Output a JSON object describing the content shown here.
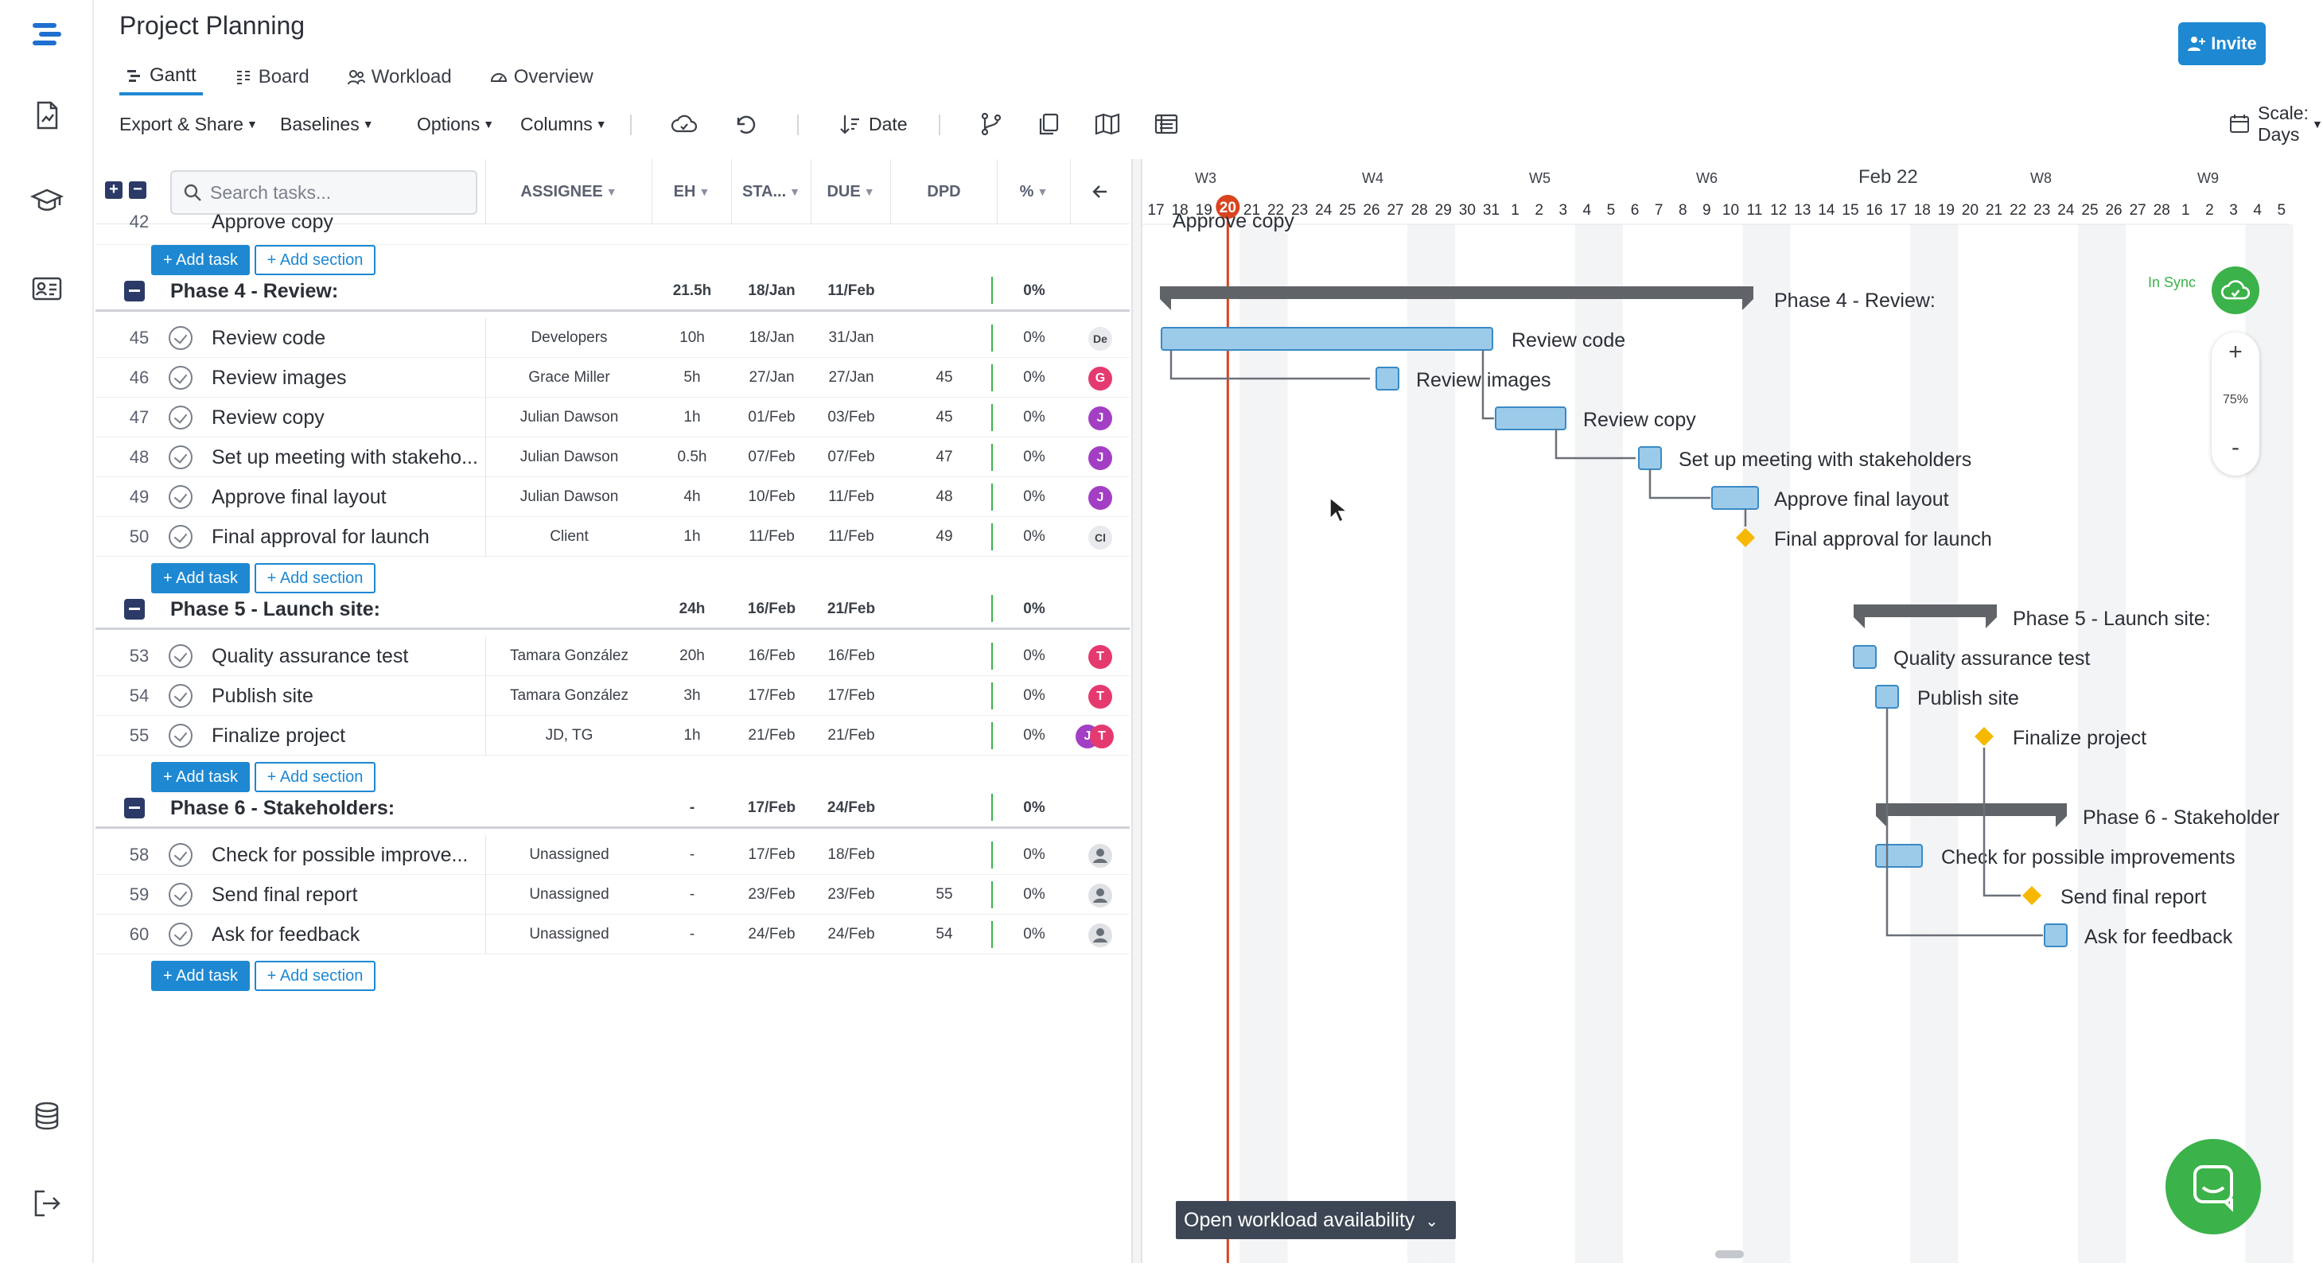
{
  "app": {
    "title": "Project Planning",
    "invite_label": "Invite"
  },
  "view_tabs": [
    {
      "label": "Gantt",
      "icon": "gantt-icon",
      "active": true
    },
    {
      "label": "Board",
      "icon": "board-icon",
      "active": false
    },
    {
      "label": "Workload",
      "icon": "workload-icon",
      "active": false
    },
    {
      "label": "Overview",
      "icon": "overview-icon",
      "active": false
    }
  ],
  "toolbar": {
    "export": "Export & Share",
    "baselines": "Baselines",
    "options": "Options",
    "columns": "Columns",
    "sort": "Date",
    "scale": "Scale: Days"
  },
  "grid": {
    "search_placeholder": "Search tasks...",
    "columns": {
      "assignee": "ASSIGNEE",
      "eh": "EH",
      "start": "STA...",
      "due": "DUE",
      "dpd": "DPD",
      "pct": "%"
    },
    "add_task": "Add task",
    "add_section": "Add section",
    "partial_row": {
      "num": "42",
      "name": "Approve copy"
    },
    "phases": [
      {
        "name": "Phase 4 - Review:",
        "eh": "21.5h",
        "start": "18/Jan",
        "due": "11/Feb",
        "pct": "0%",
        "tasks": [
          {
            "num": "45",
            "name": "Review code",
            "assignee": "Developers",
            "eh": "10h",
            "start": "18/Jan",
            "due": "31/Jan",
            "dpd": "",
            "pct": "0%",
            "avatar": "De",
            "avatar_color": "#e9eaee"
          },
          {
            "num": "46",
            "name": "Review images",
            "assignee": "Grace Miller",
            "eh": "5h",
            "start": "27/Jan",
            "due": "27/Jan",
            "dpd": "45",
            "pct": "0%",
            "avatar": "G",
            "avatar_color": "#e53a6f"
          },
          {
            "num": "47",
            "name": "Review copy",
            "assignee": "Julian Dawson",
            "eh": "1h",
            "start": "01/Feb",
            "due": "03/Feb",
            "dpd": "45",
            "pct": "0%",
            "avatar": "J",
            "avatar_color": "#a33fc4"
          },
          {
            "num": "48",
            "name": "Set up meeting with stakeho...",
            "assignee": "Julian Dawson",
            "eh": "0.5h",
            "start": "07/Feb",
            "due": "07/Feb",
            "dpd": "47",
            "pct": "0%",
            "avatar": "J",
            "avatar_color": "#a33fc4"
          },
          {
            "num": "49",
            "name": "Approve final layout",
            "assignee": "Julian Dawson",
            "eh": "4h",
            "start": "10/Feb",
            "due": "11/Feb",
            "dpd": "48",
            "pct": "0%",
            "avatar": "J",
            "avatar_color": "#a33fc4"
          },
          {
            "num": "50",
            "name": "Final approval for launch",
            "assignee": "Client",
            "eh": "1h",
            "start": "11/Feb",
            "due": "11/Feb",
            "dpd": "49",
            "pct": "0%",
            "avatar": "Cl",
            "avatar_color": "#e9eaee"
          }
        ]
      },
      {
        "name": "Phase 5 - Launch site:",
        "eh": "24h",
        "start": "16/Feb",
        "due": "21/Feb",
        "pct": "0%",
        "tasks": [
          {
            "num": "53",
            "name": "Quality assurance test",
            "assignee": "Tamara González",
            "eh": "20h",
            "start": "16/Feb",
            "due": "16/Feb",
            "dpd": "",
            "pct": "0%",
            "avatar": "T",
            "avatar_color": "#e53a6f"
          },
          {
            "num": "54",
            "name": "Publish site",
            "assignee": "Tamara González",
            "eh": "3h",
            "start": "17/Feb",
            "due": "17/Feb",
            "dpd": "",
            "pct": "0%",
            "avatar": "T",
            "avatar_color": "#e53a6f"
          },
          {
            "num": "55",
            "name": "Finalize project",
            "assignee": "JD, TG",
            "eh": "1h",
            "start": "21/Feb",
            "due": "21/Feb",
            "dpd": "",
            "pct": "0%",
            "avatar": "J T",
            "avatar_color": "#e53a6f"
          }
        ]
      },
      {
        "name": "Phase 6 - Stakeholders:",
        "eh": "-",
        "start": "17/Feb",
        "due": "24/Feb",
        "pct": "0%",
        "tasks": [
          {
            "num": "58",
            "name": "Check for possible improve...",
            "assignee": "Unassigned",
            "eh": "-",
            "start": "17/Feb",
            "due": "18/Feb",
            "dpd": "",
            "pct": "0%",
            "avatar": "",
            "avatar_color": "#dfe1e5"
          },
          {
            "num": "59",
            "name": "Send final report",
            "assignee": "Unassigned",
            "eh": "-",
            "start": "23/Feb",
            "due": "23/Feb",
            "dpd": "55",
            "pct": "0%",
            "avatar": "",
            "avatar_color": "#dfe1e5"
          },
          {
            "num": "60",
            "name": "Ask for feedback",
            "assignee": "Unassigned",
            "eh": "-",
            "start": "24/Feb",
            "due": "24/Feb",
            "dpd": "54",
            "pct": "0%",
            "avatar": "",
            "avatar_color": "#dfe1e5"
          }
        ]
      }
    ]
  },
  "gantt": {
    "weeks": [
      "W3",
      "W4",
      "W5",
      "W6",
      "Feb 22",
      "W8",
      "W9"
    ],
    "days": [
      "17",
      "18",
      "19",
      "20",
      "21",
      "22",
      "23",
      "24",
      "25",
      "26",
      "27",
      "28",
      "29",
      "30",
      "31",
      "1",
      "2",
      "3",
      "4",
      "5",
      "6",
      "7",
      "8",
      "9",
      "10",
      "11",
      "12",
      "13",
      "14",
      "15",
      "16",
      "17",
      "18",
      "19",
      "20",
      "21",
      "22",
      "23",
      "24",
      "25",
      "26",
      "27",
      "28",
      "1",
      "2",
      "3",
      "4",
      "5"
    ],
    "today_day": "20",
    "sync_label": "In Sync",
    "zoom_level": "75%",
    "workload_button": "Open workload availability",
    "labels": {
      "partial": "Approve copy",
      "phase4": "Phase 4 - Review:",
      "review_code": "Review code",
      "review_images": "Review images",
      "review_copy": "Review copy",
      "setup_meeting": "Set up meeting with stakeholders",
      "approve_layout": "Approve final layout",
      "final_approval": "Final approval for launch",
      "phase5": "Phase 5 - Launch site:",
      "qa_test": "Quality assurance test",
      "publish": "Publish site",
      "finalize": "Finalize project",
      "phase6": "Phase 6 - Stakeholder",
      "check_improve": "Check for possible improvements",
      "send_report": "Send final report",
      "ask_feedback": "Ask for feedback"
    }
  },
  "colors": {
    "accent": "#1e88d2",
    "bar": "#9ccbea",
    "bar_border": "#3a8ac4",
    "milestone": "#f6b800",
    "today": "#d9441f",
    "phase_bar": "#606468",
    "sync": "#3bb24a"
  }
}
